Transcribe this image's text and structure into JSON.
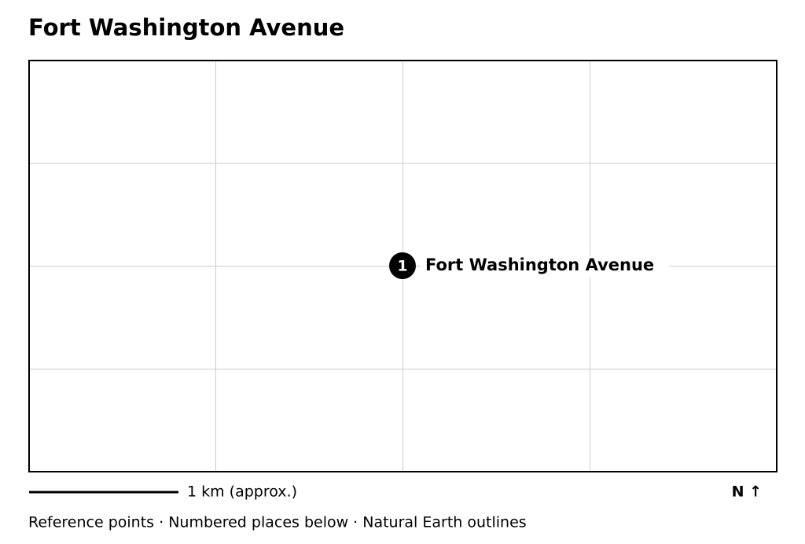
{
  "header": {
    "title": "Fort Washington Avenue"
  },
  "map": {
    "markers": [
      {
        "number": "1",
        "label": "Fort Washington Avenue"
      }
    ]
  },
  "scale_bar": {
    "label": "1 km (approx.)"
  },
  "north_arrow": {
    "label": "N ↑"
  },
  "footer": {
    "text": "Reference points · Numbered places below · Natural Earth outlines"
  }
}
